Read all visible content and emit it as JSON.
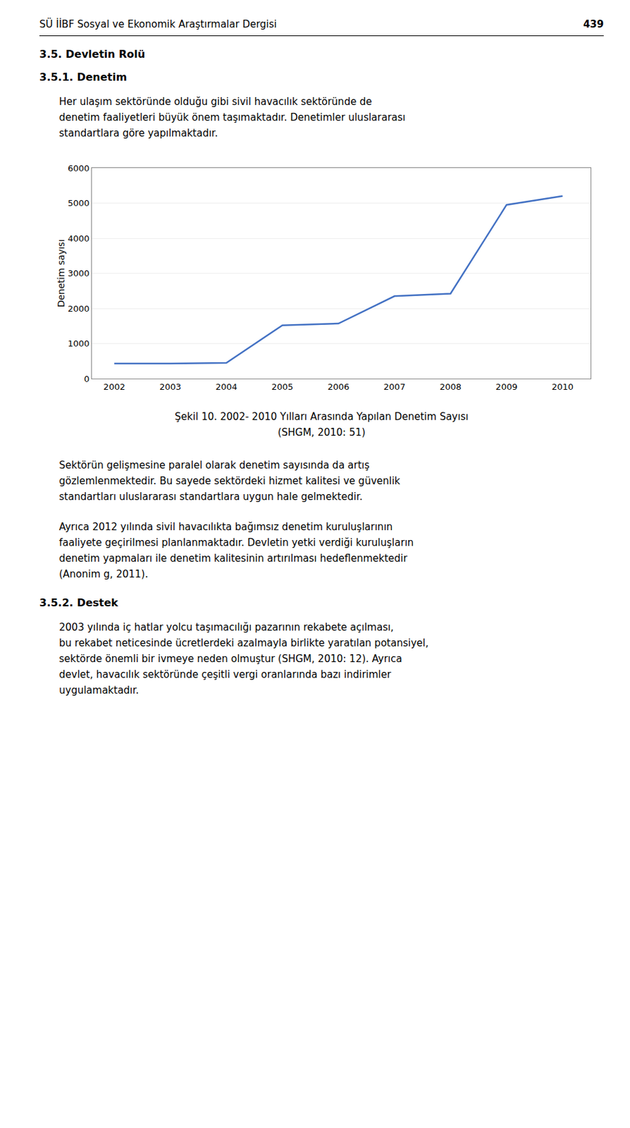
{
  "chart_data": {
    "type": "line",
    "title": "Şekil 10. 2002- 2010 Yılları Arasında Yapılan Denetim Sayısı\n(SHGM, 2010: 51)",
    "ylabel": "Denetim sayısı",
    "x": [
      2002,
      2003,
      2004,
      2005,
      2006,
      2007,
      2008,
      2009,
      2010
    ],
    "values": [
      430,
      430,
      450,
      1520,
      1570,
      2350,
      2420,
      4950,
      5200
    ],
    "color": "#4472C4",
    "xlim": [
      2001.6,
      2010.5
    ],
    "xticks": [
      2002,
      2003,
      2004,
      2005,
      2006,
      2007,
      2008,
      2009,
      2010
    ],
    "ylim": [
      0,
      6000
    ],
    "yticks": [
      0,
      1000,
      2000,
      3000,
      4000,
      5000,
      6000
    ],
    "grid": true,
    "annotations": [
      "SÜ İİBF Sosyal ve Ekonomik Araştırmalar Dergisi",
      "439",
      "3.5. Devletin Rolü",
      "3.5.1. Denetim",
      "Her ulaşım sektöründe olduğu gibi sivil havacılık sektöründe de\ndenetim faaliyetleri büyük önem taşımaktadır. Denetimler uluslararası\nstandartlara göre yapılmaktadır.",
      "Sektörün gelişmesine paralel olarak denetim sayısında da artış\ngözlemlenmektedir. Bu sayede sektördeki hizmet kalitesi ve güvenlik\nstandartları uluslararası standartlara uygun hale gelmektedir.",
      "Ayrıca 2012 yılında sivil havacılıkta bağımsız denetim kuruluşlarının\nfaaliyete geçirilmesi planlanmaktadır. Devletin yetki verdiği kuruluşların\ndenetim yapmaları ile denetim kalitesinin artırılması hedeflenmektedir\n(Anonim g, 2011).",
      "3.5.2. Destek",
      "2003 yılında iç hatlar yolcu taşımacılığı pazarının rekabete açılması,\nbu rekabet neticesinde ücretlerdeki azalmayla birlikte yaratılan potansiyel,\nsektörde önemli bir ivmeye neden olmuştur (SHGM, 2010: 12). Ayrıca\ndevlet, havacılık sektöründe çeşitli vergi oranlarında bazı indirimler\nuygulamaktadır."
    ]
  }
}
